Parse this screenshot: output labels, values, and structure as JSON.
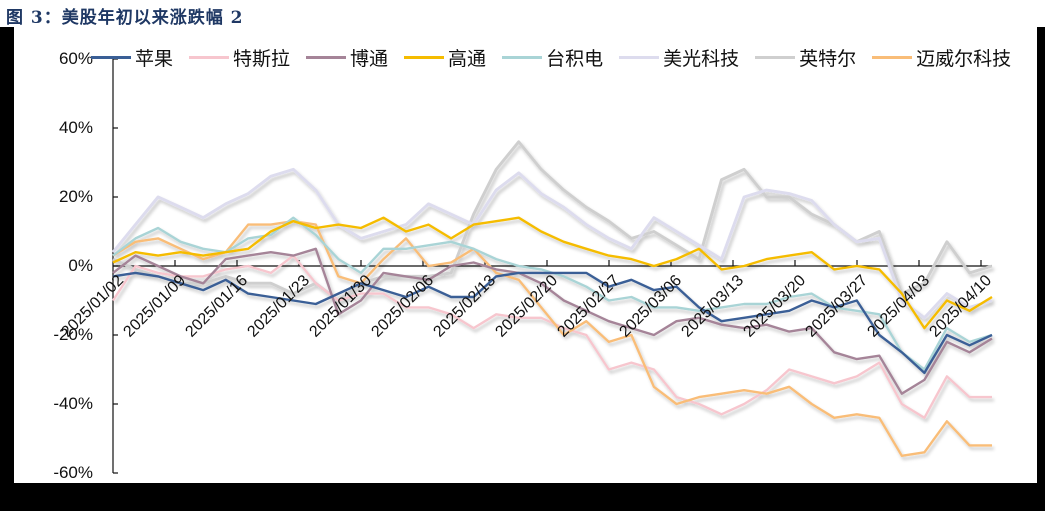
{
  "figure": {
    "title": "图 3：美股年初以来涨跌幅 2"
  },
  "legend": [
    {
      "label": "苹果",
      "color": "#3a5f96"
    },
    {
      "label": "特斯拉",
      "color": "#f7c6ce"
    },
    {
      "label": "博通",
      "color": "#a58498"
    },
    {
      "label": "高通",
      "color": "#f5bc00"
    },
    {
      "label": "台积电",
      "color": "#a9d4d6"
    },
    {
      "label": "美光科技",
      "color": "#dddcee"
    },
    {
      "label": "英特尔",
      "color": "#cfcfcf"
    },
    {
      "label": "迈威尔科技",
      "color": "#f9bd78"
    }
  ],
  "axes": {
    "y_ticks": [
      "60%",
      "40%",
      "20%",
      "0%",
      "-20%",
      "-40%",
      "-60%"
    ],
    "x_ticks": [
      "2025/01/02",
      "2025/01/09",
      "2025/01/16",
      "2025/01/23",
      "2025/01/30",
      "2025/02/06",
      "2025/02/13",
      "2025/02/20",
      "2025/02/27",
      "2025/03/06",
      "2025/03/13",
      "2025/03/20",
      "2025/03/27",
      "2025/04/03",
      "2025/04/10"
    ]
  },
  "chart_data": {
    "type": "line",
    "title": "美股年初以来涨跌幅 2",
    "xlabel": "",
    "ylabel": "",
    "ylim": [
      -60,
      60
    ],
    "y_unit": "%",
    "x_tick_labels": [
      "2025/01/02",
      "2025/01/09",
      "2025/01/16",
      "2025/01/23",
      "2025/01/30",
      "2025/02/06",
      "2025/02/13",
      "2025/02/20",
      "2025/02/27",
      "2025/03/06",
      "2025/03/13",
      "2025/03/20",
      "2025/03/27",
      "2025/04/03",
      "2025/04/10"
    ],
    "x_note": "approx. weekly sample points (every ~2-3 trading days), values in %",
    "x": [
      "01/02",
      "01/06",
      "01/08",
      "01/10",
      "01/14",
      "01/16",
      "01/17",
      "01/21",
      "01/23",
      "01/27",
      "01/29",
      "01/31",
      "02/04",
      "02/06",
      "02/10",
      "02/12",
      "02/14",
      "02/18",
      "02/20",
      "02/24",
      "02/26",
      "02/28",
      "03/04",
      "03/06",
      "03/10",
      "03/12",
      "03/14",
      "03/18",
      "03/20",
      "03/24",
      "03/26",
      "03/28",
      "04/01",
      "04/03",
      "04/04",
      "04/08",
      "04/09",
      "04/10",
      "04/11",
      "04/14"
    ],
    "series": [
      {
        "name": "苹果",
        "values": [
          -3,
          -2,
          -3,
          -5,
          -7,
          -4,
          -8,
          -9,
          -10,
          -11,
          -8,
          -5,
          -7,
          -9,
          -6,
          -9,
          -9,
          -3,
          -2,
          -2,
          -2,
          -2,
          -6,
          -4,
          -7,
          -6,
          -12,
          -16,
          -15,
          -14,
          -13,
          -10,
          -12,
          -10,
          -20,
          -25,
          -31,
          -20,
          -23,
          -20
        ]
      },
      {
        "name": "特斯拉",
        "values": [
          -10,
          0,
          -2,
          -3,
          -3,
          -1,
          0,
          -2,
          3,
          -5,
          -10,
          -8,
          -8,
          -12,
          -12,
          -14,
          -18,
          -14,
          -15,
          -15,
          -18,
          -20,
          -30,
          -28,
          -30,
          -38,
          -40,
          -43,
          -40,
          -36,
          -30,
          -32,
          -34,
          -32,
          -28,
          -40,
          -44,
          -32,
          -38,
          -38
        ]
      },
      {
        "name": "博通",
        "values": [
          -2,
          3,
          0,
          -3,
          -5,
          2,
          3,
          4,
          3,
          5,
          -14,
          -10,
          -2,
          -3,
          -4,
          0,
          1,
          -1,
          -2,
          -5,
          -10,
          -13,
          -16,
          -18,
          -20,
          -16,
          -15,
          -17,
          -18,
          -17,
          -19,
          -18,
          -25,
          -27,
          -26,
          -37,
          -33,
          -22,
          -25,
          -21
        ]
      },
      {
        "name": "高通",
        "values": [
          1,
          4,
          3,
          4,
          3,
          4,
          5,
          10,
          13,
          11,
          12,
          11,
          14,
          10,
          12,
          8,
          12,
          13,
          14,
          10,
          7,
          5,
          3,
          2,
          0,
          2,
          5,
          -1,
          0,
          2,
          3,
          4,
          -1,
          0,
          -1,
          -8,
          -18,
          -10,
          -13,
          -9
        ]
      },
      {
        "name": "台积电",
        "values": [
          3,
          8,
          11,
          7,
          5,
          4,
          8,
          9,
          14,
          9,
          2,
          -2,
          5,
          5,
          6,
          7,
          5,
          2,
          0,
          -1,
          -3,
          -6,
          -10,
          -9,
          -12,
          -12,
          -13,
          -12,
          -11,
          -11,
          -9,
          -8,
          -12,
          -13,
          -14,
          -25,
          -30,
          -18,
          -22,
          -20
        ]
      },
      {
        "name": "美光科技",
        "values": [
          4,
          12,
          20,
          17,
          14,
          18,
          21,
          26,
          28,
          22,
          12,
          8,
          10,
          12,
          18,
          15,
          12,
          22,
          27,
          21,
          17,
          12,
          8,
          5,
          14,
          10,
          6,
          2,
          20,
          22,
          21,
          19,
          12,
          7,
          8,
          -10,
          -15,
          -8,
          -12,
          -10
        ]
      },
      {
        "name": "英特尔",
        "values": [
          2,
          -1,
          -3,
          -5,
          -5,
          -3,
          -5,
          -5,
          -8,
          -5,
          -10,
          -5,
          -3,
          -3,
          -3,
          -2,
          15,
          28,
          36,
          28,
          22,
          17,
          13,
          8,
          10,
          6,
          2,
          25,
          28,
          20,
          20,
          15,
          12,
          7,
          10,
          -8,
          -5,
          7,
          -2,
          0
        ]
      },
      {
        "name": "迈威尔科技",
        "values": [
          3,
          7,
          8,
          5,
          2,
          4,
          12,
          12,
          13,
          12,
          -3,
          -5,
          2,
          8,
          0,
          1,
          5,
          -2,
          -4,
          -12,
          -20,
          -16,
          -22,
          -20,
          -35,
          -40,
          -38,
          -37,
          -36,
          -37,
          -35,
          -40,
          -44,
          -43,
          -44,
          -55,
          -54,
          -45,
          -52,
          -52
        ]
      }
    ]
  }
}
